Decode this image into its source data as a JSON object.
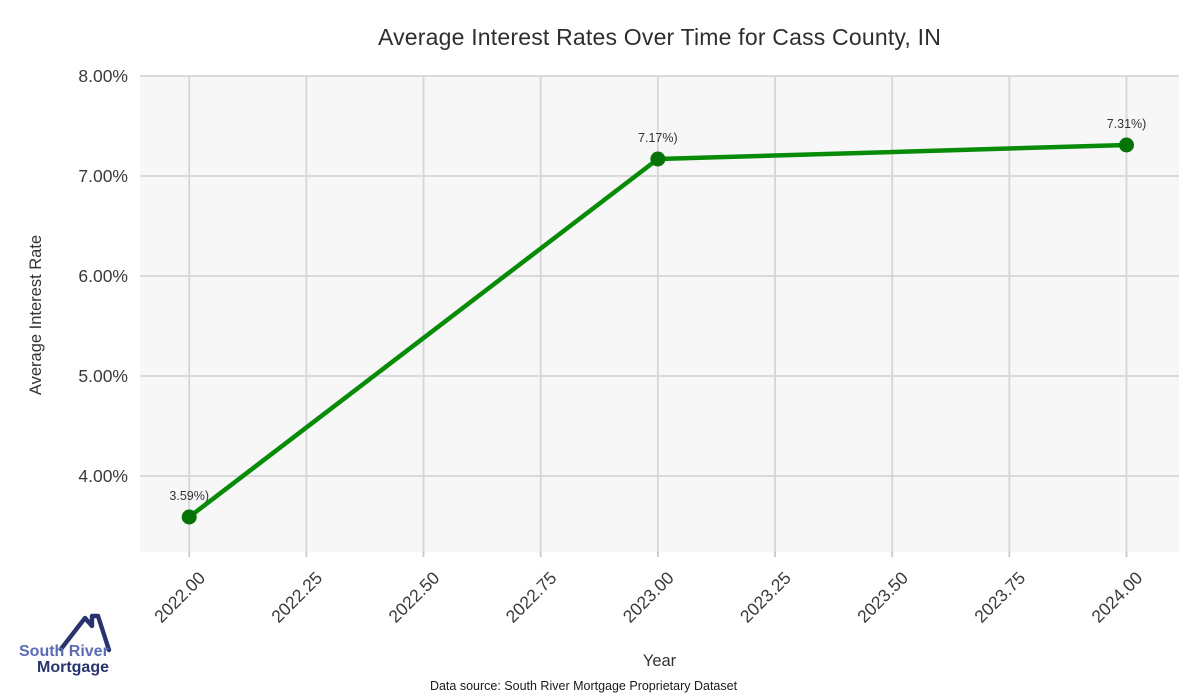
{
  "chart_data": {
    "type": "line",
    "title": "Average Interest Rates Over Time for Cass County, IN",
    "xlabel": "Year",
    "ylabel": "Average Interest Rate",
    "x": [
      2022.0,
      2023.0,
      2024.0
    ],
    "y": [
      3.59,
      7.17,
      7.31
    ],
    "point_labels": [
      "3.59%)",
      "7.17%)",
      "7.31%)"
    ],
    "x_ticks": [
      2022.0,
      2022.25,
      2022.5,
      2022.75,
      2023.0,
      2023.25,
      2023.5,
      2023.75,
      2024.0
    ],
    "x_tick_labels": [
      "2022.00",
      "2022.25",
      "2022.50",
      "2022.75",
      "2023.00",
      "2023.25",
      "2023.50",
      "2023.75",
      "2024.00"
    ],
    "y_ticks": [
      4.0,
      5.0,
      6.0,
      7.0,
      8.0
    ],
    "y_tick_labels": [
      "4.00%",
      "5.00%",
      "6.00%",
      "7.00%",
      "8.00%"
    ],
    "xlim": [
      2021.895,
      2024.112
    ],
    "ylim": [
      3.24,
      8.0
    ],
    "grid": true,
    "legend": false,
    "colors": {
      "line": "#088c08",
      "marker": "#067306",
      "grid": "#d6d6d6",
      "plot_background": "#f7f7f7",
      "tick": "#c9c9c9",
      "tick_label": "#3a3a3a",
      "point_label": "#333333"
    }
  },
  "footer": {
    "source_note": "Data source: South River Mortgage Proprietary Dataset"
  },
  "logo": {
    "line1": "South River",
    "line2": "Mortgage",
    "accent_color": "#5b6cb3",
    "navy_color": "#29336e"
  }
}
